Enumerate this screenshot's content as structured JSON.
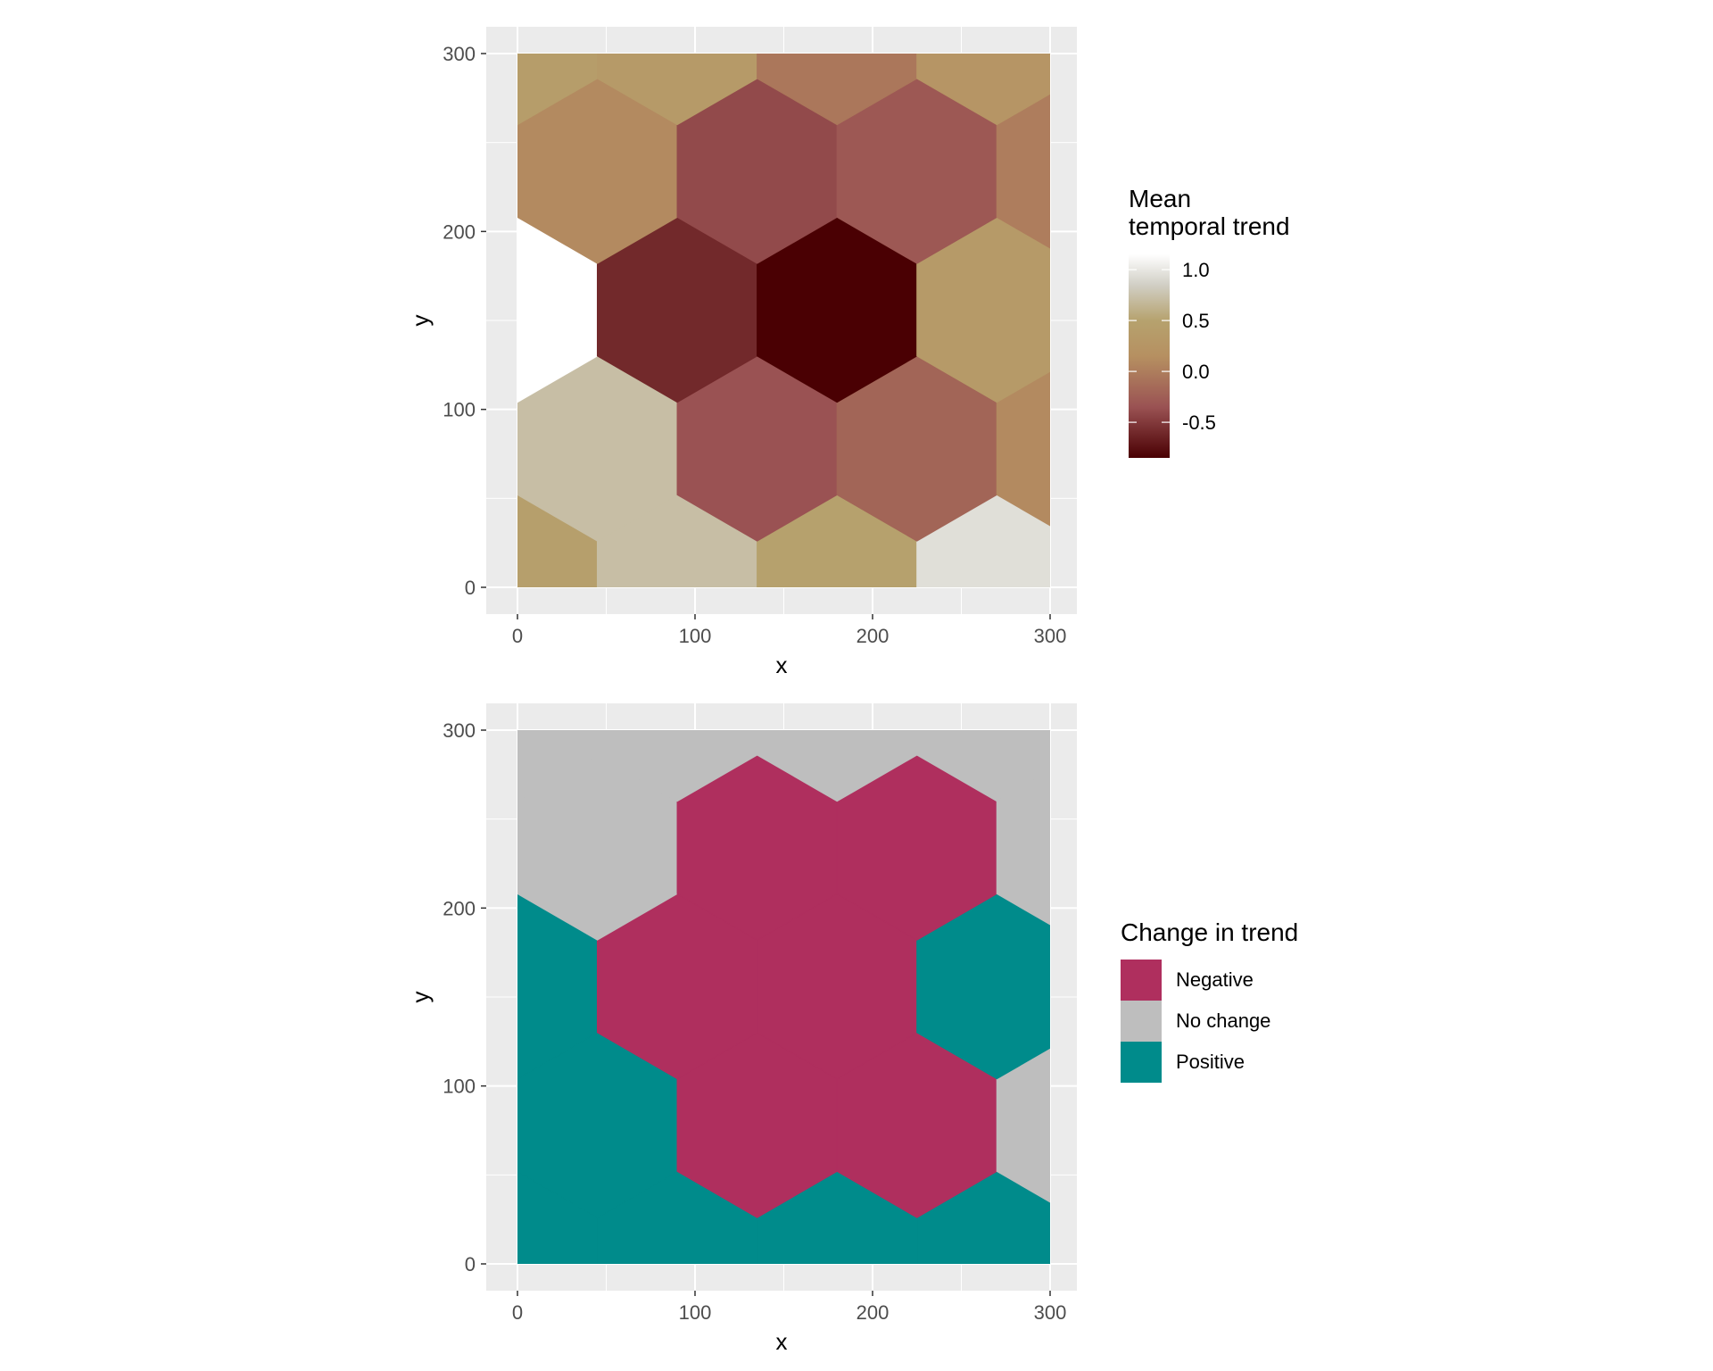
{
  "chart_data": [
    {
      "type": "heatmap",
      "geometry": "hexagonal grid",
      "xlabel": "x",
      "ylabel": "y",
      "xlim": [
        0,
        300
      ],
      "ylim": [
        0,
        300
      ],
      "xticks": [
        "0",
        "100",
        "200",
        "300"
      ],
      "yticks": [
        "0",
        "100",
        "200",
        "300"
      ],
      "legend": {
        "title_lines": [
          "Mean",
          "temporal trend"
        ],
        "type": "continuous",
        "position": "right",
        "ticks": [
          {
            "value": 1.0,
            "label": "1.0"
          },
          {
            "value": 0.5,
            "label": "0.5"
          },
          {
            "value": 0.0,
            "label": "0.0"
          },
          {
            "value": -0.5,
            "label": "-0.5"
          }
        ],
        "range": [
          -0.85,
          1.15
        ],
        "colors": [
          {
            "value": -0.85,
            "color": "#4a0003"
          },
          {
            "value": -0.35,
            "color": "#9a5253"
          },
          {
            "value": 0.15,
            "color": "#b69061"
          },
          {
            "value": 0.5,
            "color": "#b6a26e"
          },
          {
            "value": 0.85,
            "color": "#d1cfc5"
          },
          {
            "value": 1.15,
            "color": "#ffffff"
          }
        ]
      },
      "cells": [
        {
          "x": 0,
          "y": 0,
          "value": 0.45
        },
        {
          "x": 90,
          "y": 0,
          "value": 0.72
        },
        {
          "x": 180,
          "y": 0,
          "value": 0.48
        },
        {
          "x": 270,
          "y": 0,
          "value": 0.95
        },
        {
          "x": 45,
          "y": 78,
          "value": 0.72
        },
        {
          "x": 135,
          "y": 78,
          "value": -0.35
        },
        {
          "x": 225,
          "y": 78,
          "value": -0.2
        },
        {
          "x": 315,
          "y": 78,
          "value": 0.1
        },
        {
          "x": 0,
          "y": 156,
          "value": 1.15
        },
        {
          "x": 90,
          "y": 156,
          "value": -0.6
        },
        {
          "x": 180,
          "y": 156,
          "value": -0.85
        },
        {
          "x": 270,
          "y": 156,
          "value": 0.35
        },
        {
          "x": 45,
          "y": 234,
          "value": 0.1
        },
        {
          "x": 135,
          "y": 234,
          "value": -0.4
        },
        {
          "x": 225,
          "y": 234,
          "value": -0.3
        },
        {
          "x": 315,
          "y": 234,
          "value": 0.0
        },
        {
          "x": 0,
          "y": 312,
          "value": 0.4
        },
        {
          "x": 90,
          "y": 312,
          "value": 0.35
        },
        {
          "x": 180,
          "y": 312,
          "value": -0.05
        },
        {
          "x": 270,
          "y": 312,
          "value": 0.25
        }
      ]
    },
    {
      "type": "heatmap",
      "geometry": "hexagonal grid",
      "xlabel": "x",
      "ylabel": "y",
      "xlim": [
        0,
        300
      ],
      "ylim": [
        0,
        300
      ],
      "xticks": [
        "0",
        "100",
        "200",
        "300"
      ],
      "yticks": [
        "0",
        "100",
        "200",
        "300"
      ],
      "legend": {
        "title": "Change in trend",
        "type": "categorical",
        "position": "right",
        "items": [
          {
            "label": "Negative",
            "color": "#af2f5e"
          },
          {
            "label": "No change",
            "color": "#bebebe"
          },
          {
            "label": "Positive",
            "color": "#008b8b"
          }
        ]
      },
      "cells": [
        {
          "x": 0,
          "y": 0,
          "category": "Positive"
        },
        {
          "x": 90,
          "y": 0,
          "category": "Positive"
        },
        {
          "x": 180,
          "y": 0,
          "category": "Positive"
        },
        {
          "x": 270,
          "y": 0,
          "category": "Positive"
        },
        {
          "x": 45,
          "y": 78,
          "category": "Positive"
        },
        {
          "x": 135,
          "y": 78,
          "category": "Negative"
        },
        {
          "x": 225,
          "y": 78,
          "category": "Negative"
        },
        {
          "x": 315,
          "y": 78,
          "category": "No change"
        },
        {
          "x": 0,
          "y": 156,
          "category": "Positive"
        },
        {
          "x": 90,
          "y": 156,
          "category": "Negative"
        },
        {
          "x": 180,
          "y": 156,
          "category": "Negative"
        },
        {
          "x": 270,
          "y": 156,
          "category": "Positive"
        },
        {
          "x": 45,
          "y": 234,
          "category": "No change"
        },
        {
          "x": 135,
          "y": 234,
          "category": "Negative"
        },
        {
          "x": 225,
          "y": 234,
          "category": "Negative"
        },
        {
          "x": 315,
          "y": 234,
          "category": "No change"
        },
        {
          "x": 0,
          "y": 312,
          "category": "No change"
        },
        {
          "x": 90,
          "y": 312,
          "category": "No change"
        },
        {
          "x": 180,
          "y": 312,
          "category": "No change"
        },
        {
          "x": 270,
          "y": 312,
          "category": "No change"
        }
      ]
    }
  ]
}
